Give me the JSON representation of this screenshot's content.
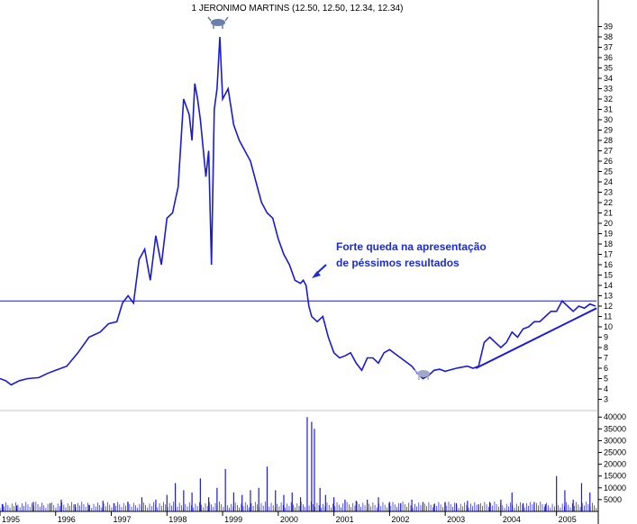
{
  "title": "1 JERONIMO MARTINS (12.50, 12.50, 12.34, 12.34)",
  "annotation": {
    "line1": "Forte queda na apresentação",
    "line2": "de péssimos resultados",
    "color": "#1a2bd8"
  },
  "colors": {
    "price": "#1a1adf",
    "volume": "#1a1adf",
    "support": "#1a1adf",
    "frame": "#000000"
  },
  "chart_data": [
    {
      "type": "line",
      "name": "price",
      "ylim": [
        2,
        40
      ],
      "yticks": [
        "3",
        "4",
        "5",
        "6",
        "7",
        "8",
        "9",
        "10",
        "11",
        "12",
        "13",
        "14",
        "15",
        "16",
        "17",
        "18",
        "19",
        "20",
        "21",
        "22",
        "23",
        "24",
        "25",
        "26",
        "27",
        "28",
        "29",
        "30",
        "31",
        "32",
        "33",
        "34",
        "35",
        "36",
        "37",
        "38",
        "39"
      ],
      "xticks": [
        "1995",
        "1996",
        "1997",
        "1998",
        "1999",
        "2000",
        "2001",
        "2002",
        "2003",
        "2004",
        "2005"
      ],
      "x": [
        1995.0,
        1995.1,
        1995.2,
        1995.35,
        1995.5,
        1995.7,
        1995.85,
        1996.0,
        1996.2,
        1996.4,
        1996.6,
        1996.8,
        1996.95,
        1997.1,
        1997.2,
        1997.3,
        1997.4,
        1997.5,
        1997.6,
        1997.7,
        1997.8,
        1997.9,
        1998.0,
        1998.1,
        1998.2,
        1998.3,
        1998.4,
        1998.45,
        1998.5,
        1998.55,
        1998.6,
        1998.7,
        1998.75,
        1998.8,
        1998.85,
        1998.9,
        1998.95,
        1999.0,
        1999.1,
        1999.2,
        1999.3,
        1999.4,
        1999.5,
        1999.6,
        1999.7,
        1999.8,
        1999.9,
        2000.0,
        2000.1,
        2000.2,
        2000.3,
        2000.4,
        2000.45,
        2000.5,
        2000.55,
        2000.6,
        2000.7,
        2000.8,
        2000.9,
        2001.0,
        2001.1,
        2001.2,
        2001.3,
        2001.4,
        2001.5,
        2001.6,
        2001.7,
        2001.8,
        2001.9,
        2002.0,
        2002.2,
        2002.4,
        2002.5,
        2002.6,
        2002.7,
        2002.8,
        2002.9,
        2003.0,
        2003.2,
        2003.4,
        2003.5,
        2003.6,
        2003.7,
        2003.8,
        2003.9,
        2004.0,
        2004.1,
        2004.2,
        2004.3,
        2004.4,
        2004.5,
        2004.6,
        2004.7,
        2004.8,
        2004.9,
        2005.0,
        2005.1,
        2005.2,
        2005.3,
        2005.4,
        2005.5,
        2005.6,
        2005.7
      ],
      "values": [
        5.0,
        4.8,
        4.4,
        4.8,
        5.0,
        5.1,
        5.5,
        5.8,
        6.2,
        7.5,
        9.0,
        9.5,
        10.3,
        10.5,
        12.3,
        13.0,
        12.3,
        16.5,
        17.5,
        14.5,
        18.8,
        16.0,
        20.5,
        21.0,
        23.5,
        32.0,
        30.5,
        28.0,
        33.5,
        32.0,
        30.0,
        24.5,
        27.0,
        16.0,
        31.0,
        33.0,
        38.0,
        32.0,
        33.0,
        29.5,
        28.0,
        27.0,
        26.0,
        24.0,
        22.0,
        21.0,
        20.5,
        18.5,
        17.0,
        16.0,
        14.5,
        14.2,
        14.5,
        14.0,
        12.0,
        11.0,
        10.5,
        11.0,
        9.0,
        7.5,
        7.0,
        7.2,
        7.5,
        6.5,
        5.8,
        7.0,
        7.0,
        6.5,
        7.5,
        7.8,
        7.0,
        6.2,
        5.5,
        5.0,
        5.3,
        5.8,
        5.9,
        5.7,
        6.0,
        6.2,
        6.0,
        6.2,
        8.5,
        9.0,
        8.5,
        8.0,
        8.5,
        9.5,
        9.0,
        9.8,
        10.0,
        10.5,
        10.5,
        11.0,
        11.5,
        11.5,
        12.5,
        12.0,
        11.5,
        12.0,
        11.8,
        12.2,
        12.0
      ]
    },
    {
      "type": "bar",
      "name": "volume",
      "ylim": [
        0,
        42000
      ],
      "yticks": [
        "5000",
        "10000",
        "15000",
        "20000",
        "25000",
        "30000",
        "35000",
        "40000"
      ],
      "x": [
        1995.05,
        1995.3,
        1995.6,
        1995.9,
        1996.1,
        1996.35,
        1996.6,
        1996.85,
        1997.05,
        1997.3,
        1997.55,
        1997.8,
        1998.0,
        1998.15,
        1998.3,
        1998.45,
        1998.6,
        1998.75,
        1998.9,
        1999.05,
        1999.2,
        1999.35,
        1999.5,
        1999.65,
        1999.8,
        1999.95,
        2000.1,
        2000.25,
        2000.4,
        2000.52,
        2000.6,
        2000.65,
        2000.75,
        2000.85,
        2001.0,
        2001.2,
        2001.4,
        2001.6,
        2001.8,
        2002.0,
        2002.2,
        2002.4,
        2002.6,
        2002.8,
        2003.0,
        2003.2,
        2003.4,
        2003.6,
        2003.8,
        2004.0,
        2004.2,
        2004.4,
        2004.6,
        2004.8,
        2005.0,
        2005.15,
        2005.3,
        2005.45,
        2005.6
      ],
      "values": [
        3000,
        2500,
        4000,
        3500,
        5000,
        3000,
        2800,
        4500,
        3500,
        4000,
        6000,
        5000,
        7000,
        12000,
        9000,
        8000,
        14000,
        6000,
        10000,
        18000,
        8000,
        7000,
        9000,
        10000,
        19000,
        9000,
        7000,
        8000,
        6000,
        40000,
        38000,
        35000,
        10000,
        7000,
        6000,
        5000,
        4500,
        5000,
        6000,
        4000,
        3500,
        5000,
        4000,
        3000,
        4000,
        3500,
        4500,
        3000,
        4000,
        5000,
        8000,
        3500,
        4000,
        3000,
        15000,
        9000,
        5000,
        12000,
        8000
      ]
    }
  ],
  "support_levels": [
    {
      "type": "horizontal",
      "value": 12.5,
      "x_start": 1995.0,
      "x_end": 2005.72
    },
    {
      "type": "trend",
      "x_start": 2003.55,
      "y_start": 6.0,
      "x_end": 2005.72,
      "y_end": 11.8
    }
  ]
}
